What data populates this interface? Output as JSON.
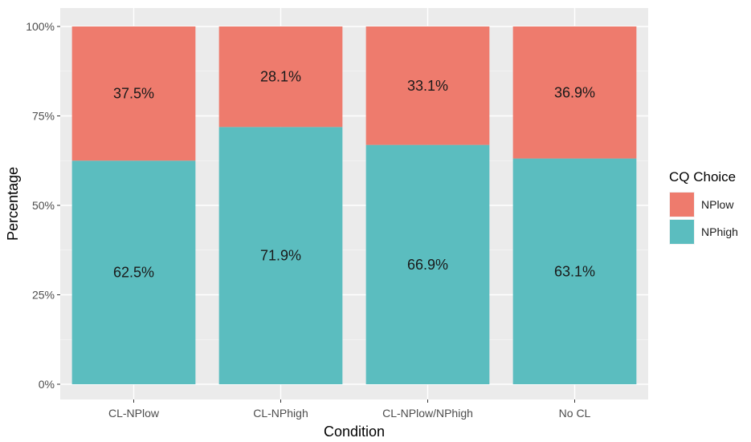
{
  "chart_data": {
    "type": "bar",
    "stacked": true,
    "percent": true,
    "categories": [
      "CL-NPlow",
      "CL-NPhigh",
      "CL-NPlow/NPhigh",
      "No CL"
    ],
    "series": [
      {
        "name": "NPhigh",
        "values": [
          62.5,
          71.9,
          66.9,
          63.1
        ],
        "labels": [
          "62.5%",
          "71.9%",
          "66.9%",
          "63.1%"
        ],
        "color": "#5BBDBF"
      },
      {
        "name": "NPlow",
        "values": [
          37.5,
          28.1,
          33.1,
          36.9
        ],
        "labels": [
          "37.5%",
          "28.1%",
          "33.1%",
          "36.9%"
        ],
        "color": "#EE7B6D"
      }
    ],
    "xlabel": "Condition",
    "ylabel": "Percentage",
    "ylim": [
      0,
      100
    ],
    "yticks": [
      "0%",
      "25%",
      "50%",
      "75%",
      "100%"
    ],
    "legend": {
      "title": "CQ Choice",
      "position": "right",
      "entries": [
        "NPlow",
        "NPhigh"
      ]
    },
    "grid": true,
    "panel_background": "#EBEBEB"
  }
}
